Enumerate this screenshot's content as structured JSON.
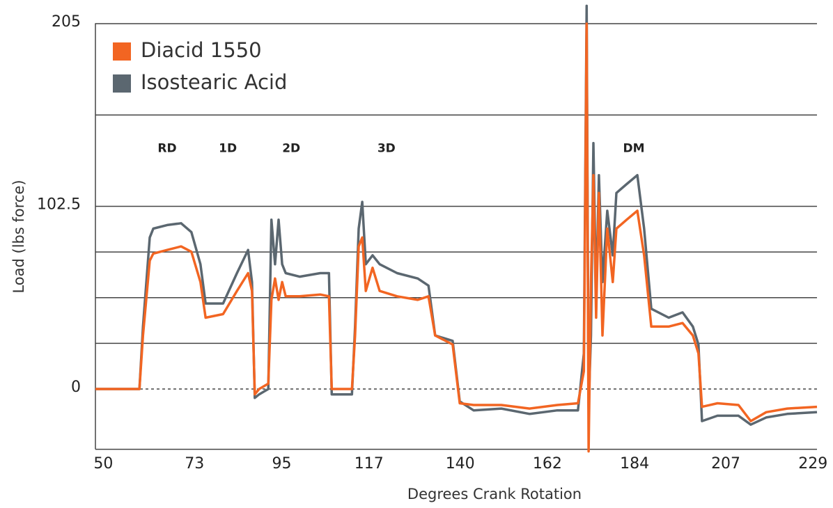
{
  "chart_data": {
    "type": "line",
    "x_label": "Degrees Crank Rotation",
    "y_label": "Load (lbs force)",
    "xlim": [
      48,
      230
    ],
    "xticks": [
      50,
      73,
      95,
      117,
      140,
      162,
      184,
      207,
      229
    ],
    "ylim": [
      -35,
      215
    ],
    "yticks": [
      0,
      102.5,
      205
    ],
    "ygrid": [
      25.625,
      51.25,
      76.875,
      153.75
    ],
    "zero_line": "dashed",
    "legend": "upper left",
    "x": [
      48,
      59.1,
      60,
      61.7,
      62.6,
      66.1,
      69.6,
      72.2,
      74.5,
      75.8,
      80.2,
      83.7,
      86.5,
      87.5,
      88.2,
      89.3,
      91.6,
      92.4,
      93.3,
      94.2,
      95.1,
      96,
      99.5,
      104.7,
      106.9,
      107.6,
      112.7,
      113.5,
      114.4,
      115.3,
      116.2,
      117.9,
      119.7,
      124.1,
      129.3,
      132,
      133.7,
      138.1,
      139.9,
      143.4,
      150.4,
      157.5,
      164.5,
      169.7,
      171.2,
      171.9,
      172.4,
      173,
      173.6,
      174.3,
      175,
      175.9,
      177.1,
      178.5,
      179.4,
      182,
      184.7,
      186.4,
      188.2,
      192.6,
      196.1,
      198.7,
      200.1,
      201,
      204.9,
      210.2,
      213.3,
      217.2,
      222.5,
      230
    ],
    "series": [
      {
        "name": "Diacid 1550",
        "color": "#f26522",
        "values": [
          0,
          0,
          30,
          72,
          76,
          78,
          80,
          77,
          60,
          40,
          42,
          55,
          65,
          55,
          -3,
          0,
          3,
          50,
          62,
          50,
          60,
          52,
          52,
          53,
          52,
          0,
          0,
          30,
          80,
          85,
          55,
          68,
          55,
          52,
          50,
          52,
          30,
          25,
          -8,
          -9,
          -9,
          -11,
          -9,
          -8,
          10,
          205,
          -35,
          60,
          120,
          40,
          110,
          30,
          90,
          60,
          90,
          95,
          100,
          75,
          35,
          35,
          37,
          30,
          20,
          -10,
          -8,
          -9,
          -18,
          -13,
          -11,
          -10
        ]
      },
      {
        "name": "Isostearic Acid",
        "color": "#5b6770",
        "values": [
          0,
          0,
          35,
          85,
          90,
          92,
          93,
          88,
          70,
          48,
          48,
          65,
          78,
          60,
          -5,
          -3,
          0,
          95,
          70,
          95,
          70,
          65,
          63,
          65,
          65,
          -3,
          -3,
          35,
          90,
          105,
          70,
          75,
          70,
          65,
          62,
          58,
          30,
          27,
          -7,
          -12,
          -11,
          -14,
          -12,
          -12,
          20,
          215,
          -10,
          30,
          138,
          50,
          120,
          60,
          100,
          75,
          110,
          115,
          120,
          90,
          45,
          40,
          43,
          35,
          25,
          -18,
          -15,
          -15,
          -20,
          -16,
          -14,
          -13
        ]
      }
    ],
    "annotations": [
      {
        "text": "RD",
        "x": 66.1,
        "y": 135
      },
      {
        "text": "1D",
        "x": 81.4,
        "y": 135
      },
      {
        "text": "2D",
        "x": 97.4,
        "y": 135
      },
      {
        "text": "3D",
        "x": 121.4,
        "y": 135
      },
      {
        "text": "DM",
        "x": 183.8,
        "y": 135
      }
    ]
  }
}
